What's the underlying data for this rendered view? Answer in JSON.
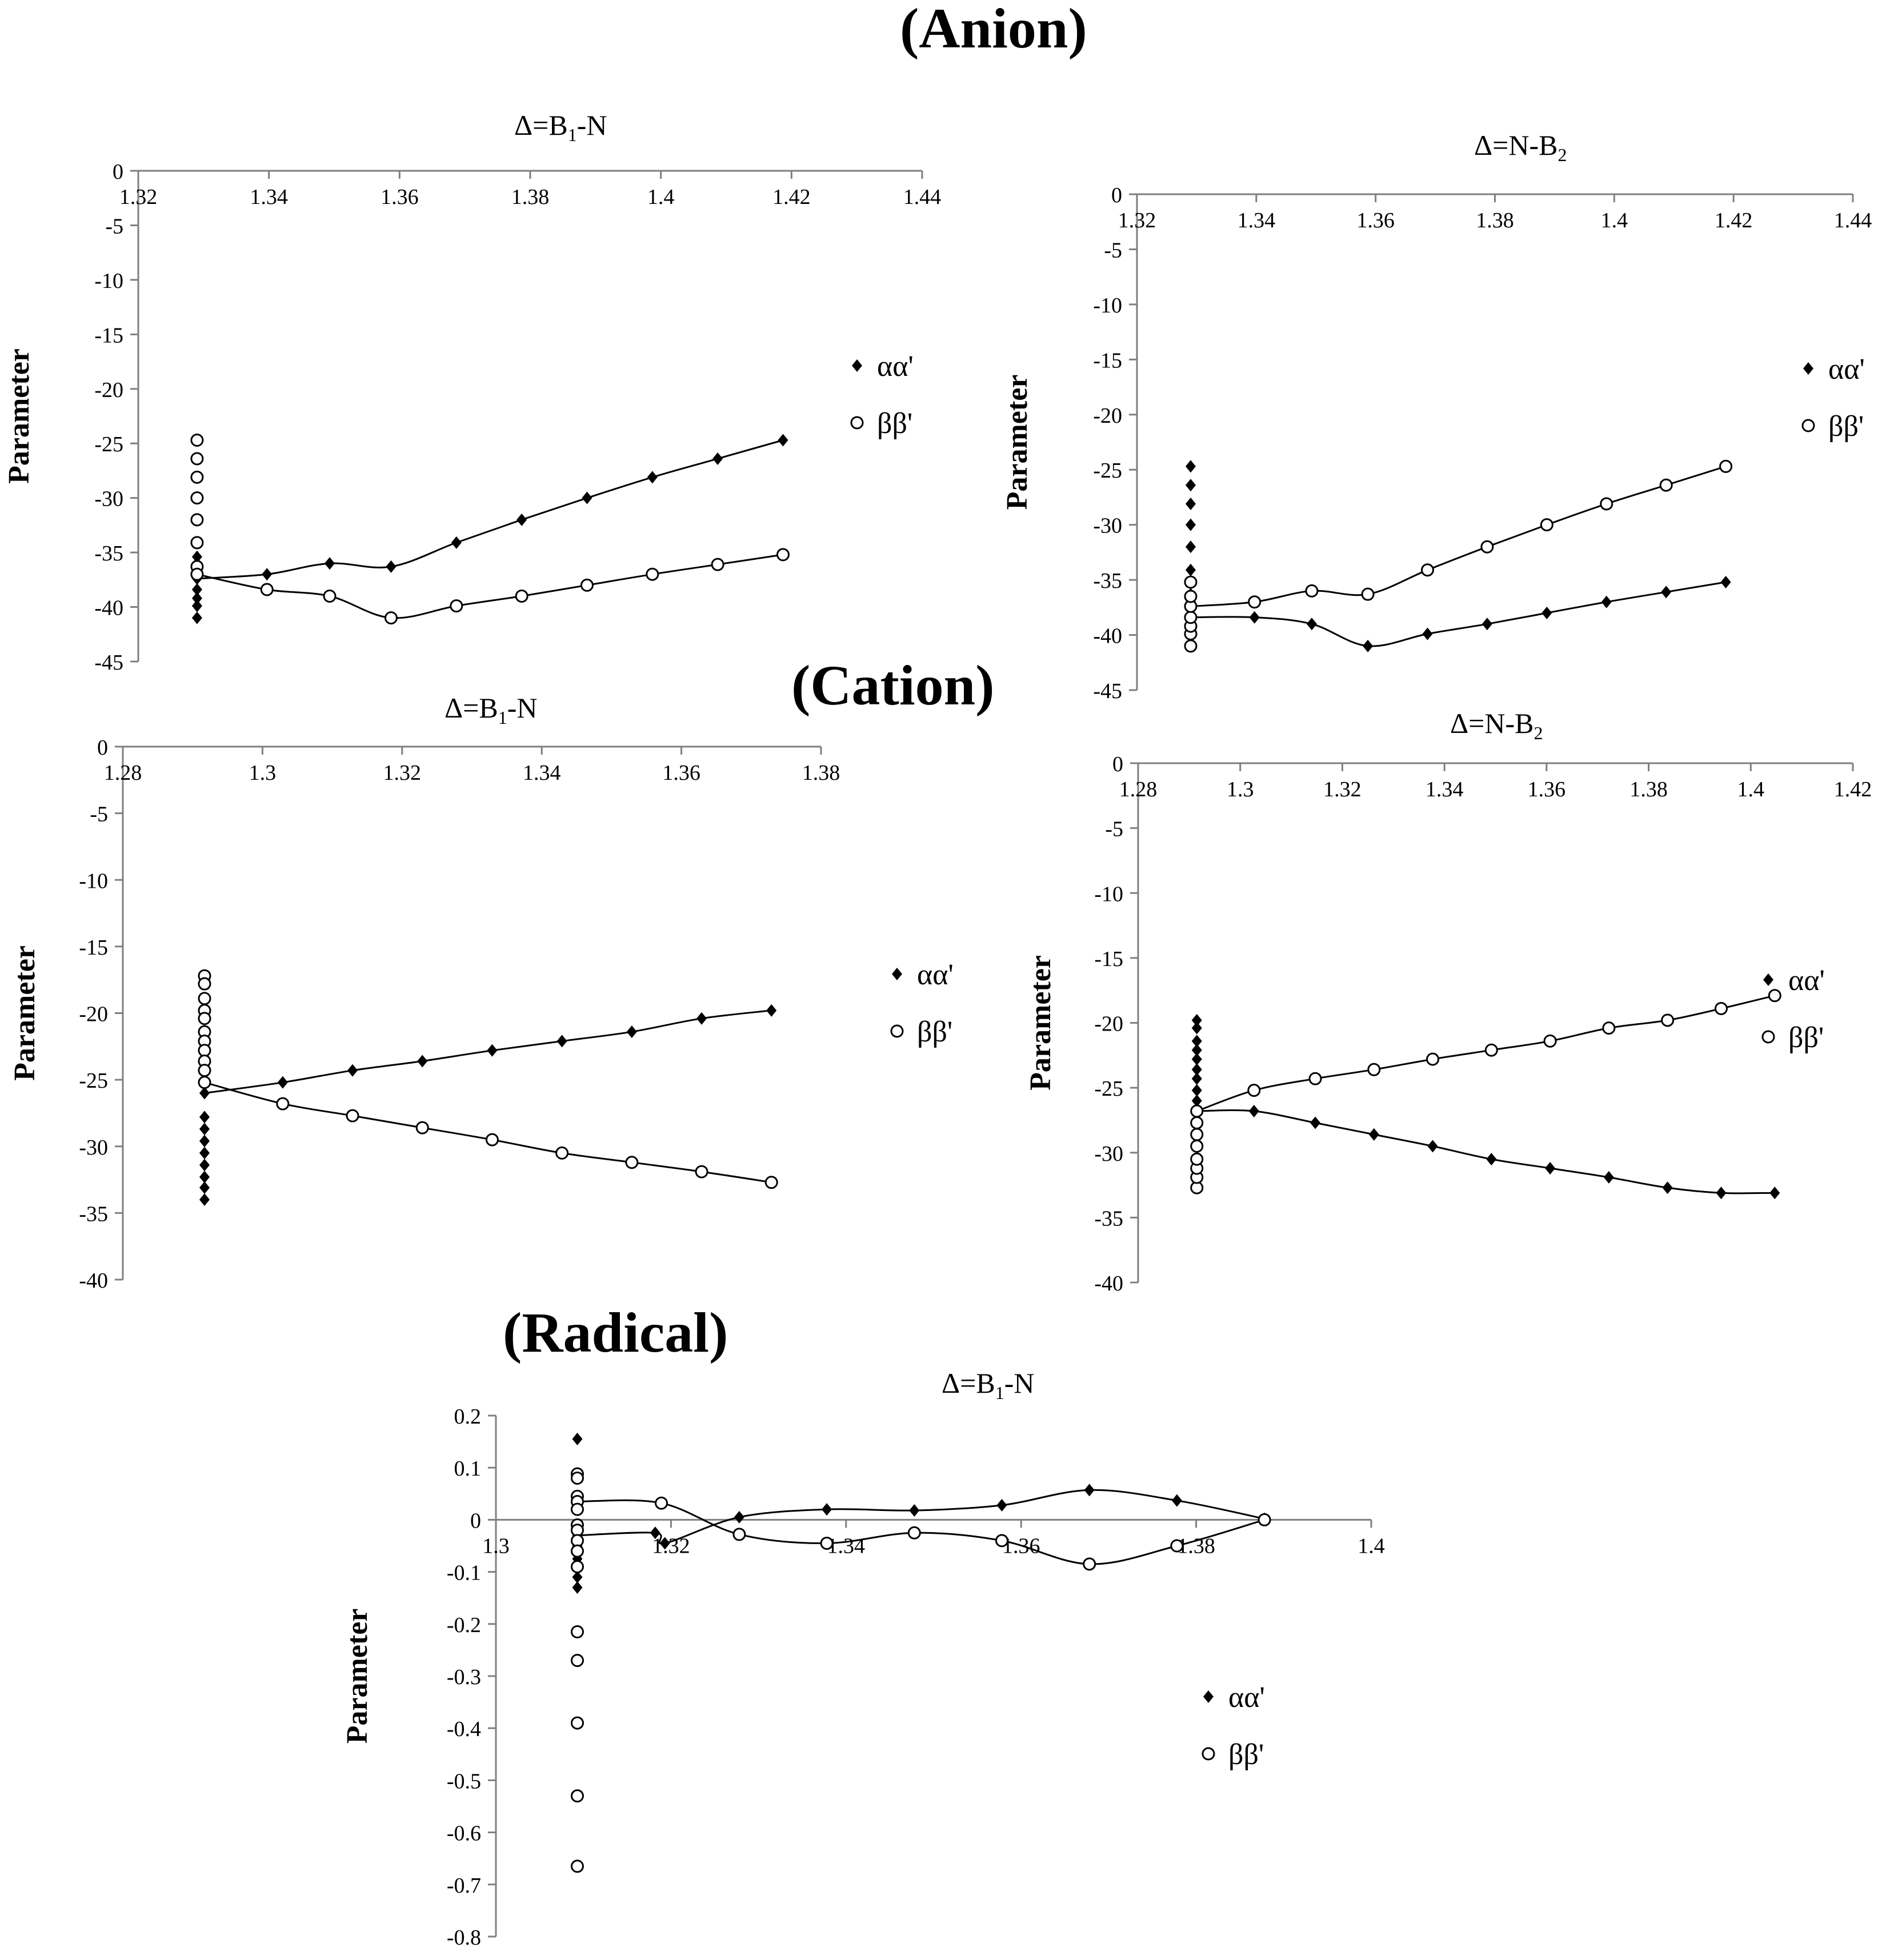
{
  "figure": {
    "sections": {
      "anion": "(Anion)",
      "cation": "(Cation)",
      "radical": "(Radical)"
    }
  },
  "chart_data": [
    {
      "id": "anion-b1n",
      "section": "Anion",
      "type": "scatter",
      "title": "Δ=B₁-N",
      "title_main": "Δ=B",
      "title_sub": "1",
      "title_end": "-N",
      "ylabel": "Parameter",
      "xlim": [
        1.32,
        1.44
      ],
      "ylim": [
        -45,
        0
      ],
      "xticks": [
        "1.32",
        "1.34",
        "1.36",
        "1.38",
        "1.4",
        "1.42",
        "1.44"
      ],
      "yticks": [
        "0",
        "-5",
        "-10",
        "-15",
        "-20",
        "-25",
        "-30",
        "-35",
        "-40",
        "-45"
      ],
      "xtick_values": [
        1.32,
        1.34,
        1.36,
        1.38,
        1.4,
        1.42,
        1.44
      ],
      "ytick_values": [
        0,
        -5,
        -10,
        -15,
        -20,
        -25,
        -30,
        -35,
        -40,
        -45
      ],
      "legend": [
        "αα'",
        "ββ'"
      ],
      "series": [
        {
          "name": "αα'",
          "marker": "diamond",
          "x": [
            1.329,
            1.329,
            1.329,
            1.329,
            1.329,
            1.329,
            1.329,
            1.329,
            1.3397,
            1.3493,
            1.3587,
            1.3687,
            1.3787,
            1.3887,
            1.3987,
            1.4087,
            1.4187
          ],
          "y": [
            -41,
            -39.9,
            -39.2,
            -38.4,
            -37.4,
            -36.5,
            -36,
            -35.4,
            -37,
            -36,
            -36.3,
            -34.1,
            -32,
            -30,
            -28.1,
            -26.4,
            -24.7
          ]
        },
        {
          "name": "ββ'",
          "marker": "circle",
          "x": [
            1.329,
            1.329,
            1.329,
            1.329,
            1.329,
            1.329,
            1.329,
            1.329,
            1.3397,
            1.3493,
            1.3587,
            1.3687,
            1.3787,
            1.3887,
            1.3987,
            1.4087,
            1.4187
          ],
          "y": [
            -24.7,
            -26.4,
            -28.1,
            -30,
            -32,
            -34.1,
            -36.3,
            -37,
            -38.4,
            -39,
            -41,
            -39.9,
            -39,
            -38,
            -37,
            -36.1,
            -35.2
          ]
        }
      ]
    },
    {
      "id": "anion-nb2",
      "section": "Anion",
      "type": "scatter",
      "title": "Δ=N-B₂",
      "title_main": "Δ=N-B",
      "title_sub": "2",
      "title_end": "",
      "ylabel": "Parameter",
      "xlim": [
        1.32,
        1.44
      ],
      "ylim": [
        -45,
        0
      ],
      "xticks": [
        "1.32",
        "1.34",
        "1.36",
        "1.38",
        "1.4",
        "1.42",
        "1.44"
      ],
      "yticks": [
        "0",
        "-5",
        "-10",
        "-15",
        "-20",
        "-25",
        "-30",
        "-35",
        "-40",
        "-45"
      ],
      "xtick_values": [
        1.32,
        1.34,
        1.36,
        1.38,
        1.4,
        1.42,
        1.44
      ],
      "ytick_values": [
        0,
        -5,
        -10,
        -15,
        -20,
        -25,
        -30,
        -35,
        -40,
        -45
      ],
      "legend": [
        "αα'",
        "ββ'"
      ],
      "series": [
        {
          "name": "αα'",
          "marker": "diamond",
          "x": [
            1.329,
            1.329,
            1.329,
            1.329,
            1.329,
            1.329,
            1.329,
            1.329,
            1.329,
            1.3397,
            1.3493,
            1.3587,
            1.3687,
            1.3787,
            1.3887,
            1.3987,
            1.4087,
            1.4187
          ],
          "y": [
            -24.7,
            -26.4,
            -28.1,
            -30,
            -32,
            -34.1,
            -36.3,
            -37,
            -38.4,
            -38.4,
            -39,
            -41,
            -39.9,
            -39,
            -38,
            -37,
            -36.1,
            -35.2
          ]
        },
        {
          "name": "ββ'",
          "marker": "circle",
          "x": [
            1.329,
            1.329,
            1.329,
            1.329,
            1.329,
            1.329,
            1.329,
            1.3397,
            1.3493,
            1.3587,
            1.3687,
            1.3787,
            1.3887,
            1.3987,
            1.4087,
            1.4187
          ],
          "y": [
            -41,
            -39.9,
            -39.2,
            -38.4,
            -37.4,
            -36.5,
            -35.2,
            -37,
            -36,
            -36.3,
            -34.1,
            -32,
            -30,
            -28.1,
            -26.4,
            -24.7
          ]
        }
      ]
    },
    {
      "id": "cation-b1n",
      "section": "Cation",
      "type": "scatter",
      "title": "Δ=B₁-N",
      "title_main": "Δ=B",
      "title_sub": "1",
      "title_end": "-N",
      "ylabel": "Parameter",
      "xlim": [
        1.28,
        1.38
      ],
      "ylim": [
        -40,
        0
      ],
      "xticks": [
        "1.28",
        "1.3",
        "1.32",
        "1.34",
        "1.36",
        "1.38"
      ],
      "yticks": [
        "0",
        "-5",
        "-10",
        "-15",
        "-20",
        "-25",
        "-30",
        "-35",
        "-40"
      ],
      "xtick_values": [
        1.28,
        1.3,
        1.32,
        1.34,
        1.36,
        1.38
      ],
      "ytick_values": [
        0,
        -5,
        -10,
        -15,
        -20,
        -25,
        -30,
        -35,
        -40
      ],
      "legend": [
        "αα'",
        "ββ'"
      ],
      "series": [
        {
          "name": "αα'",
          "marker": "diamond",
          "x": [
            1.2917,
            1.2917,
            1.2917,
            1.2917,
            1.2917,
            1.2917,
            1.2917,
            1.2917,
            1.2917,
            1.3029,
            1.3129,
            1.3229,
            1.3329,
            1.3429,
            1.3529,
            1.3629,
            1.3729
          ],
          "y": [
            -34,
            -33.1,
            -32.3,
            -31.4,
            -30.5,
            -29.6,
            -28.7,
            -27.8,
            -26,
            -25.2,
            -24.3,
            -23.6,
            -22.8,
            -22.1,
            -21.4,
            -20.4,
            -19.8
          ]
        },
        {
          "name": "ββ'",
          "marker": "circle",
          "x": [
            1.2917,
            1.2917,
            1.2917,
            1.2917,
            1.2917,
            1.2917,
            1.2917,
            1.2917,
            1.2917,
            1.2917,
            1.2917,
            1.3029,
            1.3129,
            1.3229,
            1.3329,
            1.3429,
            1.3529,
            1.3629,
            1.3729
          ],
          "y": [
            -17.2,
            -17.8,
            -18.9,
            -19.8,
            -20.4,
            -21.4,
            -22.1,
            -22.8,
            -23.6,
            -24.3,
            -25.2,
            -26.8,
            -27.7,
            -28.6,
            -29.5,
            -30.5,
            -31.2,
            -31.9,
            -32.7
          ]
        }
      ]
    },
    {
      "id": "cation-nb2",
      "section": "Cation",
      "type": "scatter",
      "title": "Δ=N-B₂",
      "title_main": "Δ=N-B",
      "title_sub": "2",
      "title_end": "",
      "ylabel": "Parameter",
      "xlim": [
        1.28,
        1.42
      ],
      "ylim": [
        -40,
        0
      ],
      "xticks": [
        "1.28",
        "1.3",
        "1.32",
        "1.34",
        "1.36",
        "1.38",
        "1.4",
        "1.42"
      ],
      "yticks": [
        "0",
        "-5",
        "-10",
        "-15",
        "-20",
        "-25",
        "-30",
        "-35",
        "-40"
      ],
      "xtick_values": [
        1.28,
        1.3,
        1.32,
        1.34,
        1.36,
        1.38,
        1.4,
        1.42
      ],
      "ytick_values": [
        0,
        -5,
        -10,
        -15,
        -20,
        -25,
        -30,
        -35,
        -40
      ],
      "legend": [
        "αα'",
        "ββ'"
      ],
      "series": [
        {
          "name": "αα'",
          "marker": "diamond",
          "x": [
            1.2915,
            1.2915,
            1.2915,
            1.2915,
            1.2915,
            1.2915,
            1.2915,
            1.2915,
            1.2915,
            1.2915,
            1.2915,
            1.3027,
            1.3147,
            1.3262,
            1.3377,
            1.3492,
            1.3607,
            1.3722,
            1.3837,
            1.3942,
            1.4047
          ],
          "y": [
            -19.8,
            -20.4,
            -21.4,
            -22.1,
            -22.8,
            -23.6,
            -24.3,
            -25.2,
            -26,
            -26.9,
            -26.8,
            -26.8,
            -27.7,
            -28.6,
            -29.5,
            -30.5,
            -31.2,
            -31.9,
            -32.7,
            -33.1,
            -33.1
          ]
        },
        {
          "name": "ββ'",
          "marker": "circle",
          "x": [
            1.2915,
            1.2915,
            1.2915,
            1.2915,
            1.2915,
            1.2915,
            1.2915,
            1.2915,
            1.3027,
            1.3147,
            1.3262,
            1.3377,
            1.3492,
            1.3607,
            1.3722,
            1.3837,
            1.3942,
            1.4047
          ],
          "y": [
            -32.7,
            -31.9,
            -31.2,
            -30.5,
            -29.5,
            -28.6,
            -27.7,
            -26.8,
            -25.2,
            -24.3,
            -23.6,
            -22.8,
            -22.1,
            -21.4,
            -20.4,
            -19.8,
            -18.9,
            -17.9
          ]
        }
      ]
    },
    {
      "id": "radical-b1n",
      "section": "Radical",
      "type": "scatter",
      "title": "Δ=B₁-N",
      "title_main": "Δ=B",
      "title_sub": "1",
      "title_end": "-N",
      "ylabel": "Parameter",
      "xlim": [
        1.3,
        1.4
      ],
      "ylim": [
        -0.8,
        0.2
      ],
      "xticks": [
        "1.3",
        "1.32",
        "1.34",
        "1.36",
        "1.38",
        "1.4"
      ],
      "yticks": [
        "0.2",
        "0.1",
        "0",
        "-0.1",
        "-0.2",
        "-0.3",
        "-0.4",
        "-0.5",
        "-0.6",
        "-0.7",
        "-0.8"
      ],
      "xtick_values": [
        1.3,
        1.32,
        1.34,
        1.36,
        1.38,
        1.4
      ],
      "ytick_values": [
        0.2,
        0.1,
        0,
        -0.1,
        -0.2,
        -0.3,
        -0.4,
        -0.5,
        -0.6,
        -0.7,
        -0.8
      ],
      "legend": [
        "αα'",
        "ββ'"
      ],
      "series": [
        {
          "name": "αα'",
          "marker": "diamond",
          "x": [
            1.3093,
            1.3093,
            1.3093,
            1.3093,
            1.3093,
            1.3093,
            1.3093,
            1.3093,
            1.3093,
            1.3093,
            1.3093,
            1.3182,
            1.3193,
            1.3278,
            1.3378,
            1.3478,
            1.3578,
            1.3678,
            1.3778,
            1.3878
          ],
          "y": [
            0.155,
            0.08,
            0.04,
            0.02,
            -0.01,
            -0.03,
            -0.05,
            -0.065,
            -0.075,
            -0.11,
            -0.13,
            -0.025,
            -0.045,
            0.005,
            0.02,
            0.018,
            0.028,
            0.057,
            0.037,
            0.002
          ]
        },
        {
          "name": "ββ'",
          "marker": "circle",
          "x": [
            1.3093,
            1.3093,
            1.3093,
            1.3093,
            1.3093,
            1.3093,
            1.3093,
            1.3093,
            1.3093,
            1.3093,
            1.3093,
            1.3093,
            1.3093,
            1.3093,
            1.3093,
            1.3189,
            1.3278,
            1.3378,
            1.3478,
            1.3578,
            1.3678,
            1.3778,
            1.3878
          ],
          "y": [
            0.088,
            0.08,
            0.045,
            0.035,
            0.02,
            -0.01,
            -0.02,
            -0.04,
            -0.06,
            -0.09,
            -0.215,
            -0.27,
            -0.39,
            -0.53,
            -0.665,
            0.032,
            -0.028,
            -0.045,
            -0.025,
            -0.04,
            -0.085,
            -0.05,
            0.0
          ]
        }
      ]
    }
  ]
}
